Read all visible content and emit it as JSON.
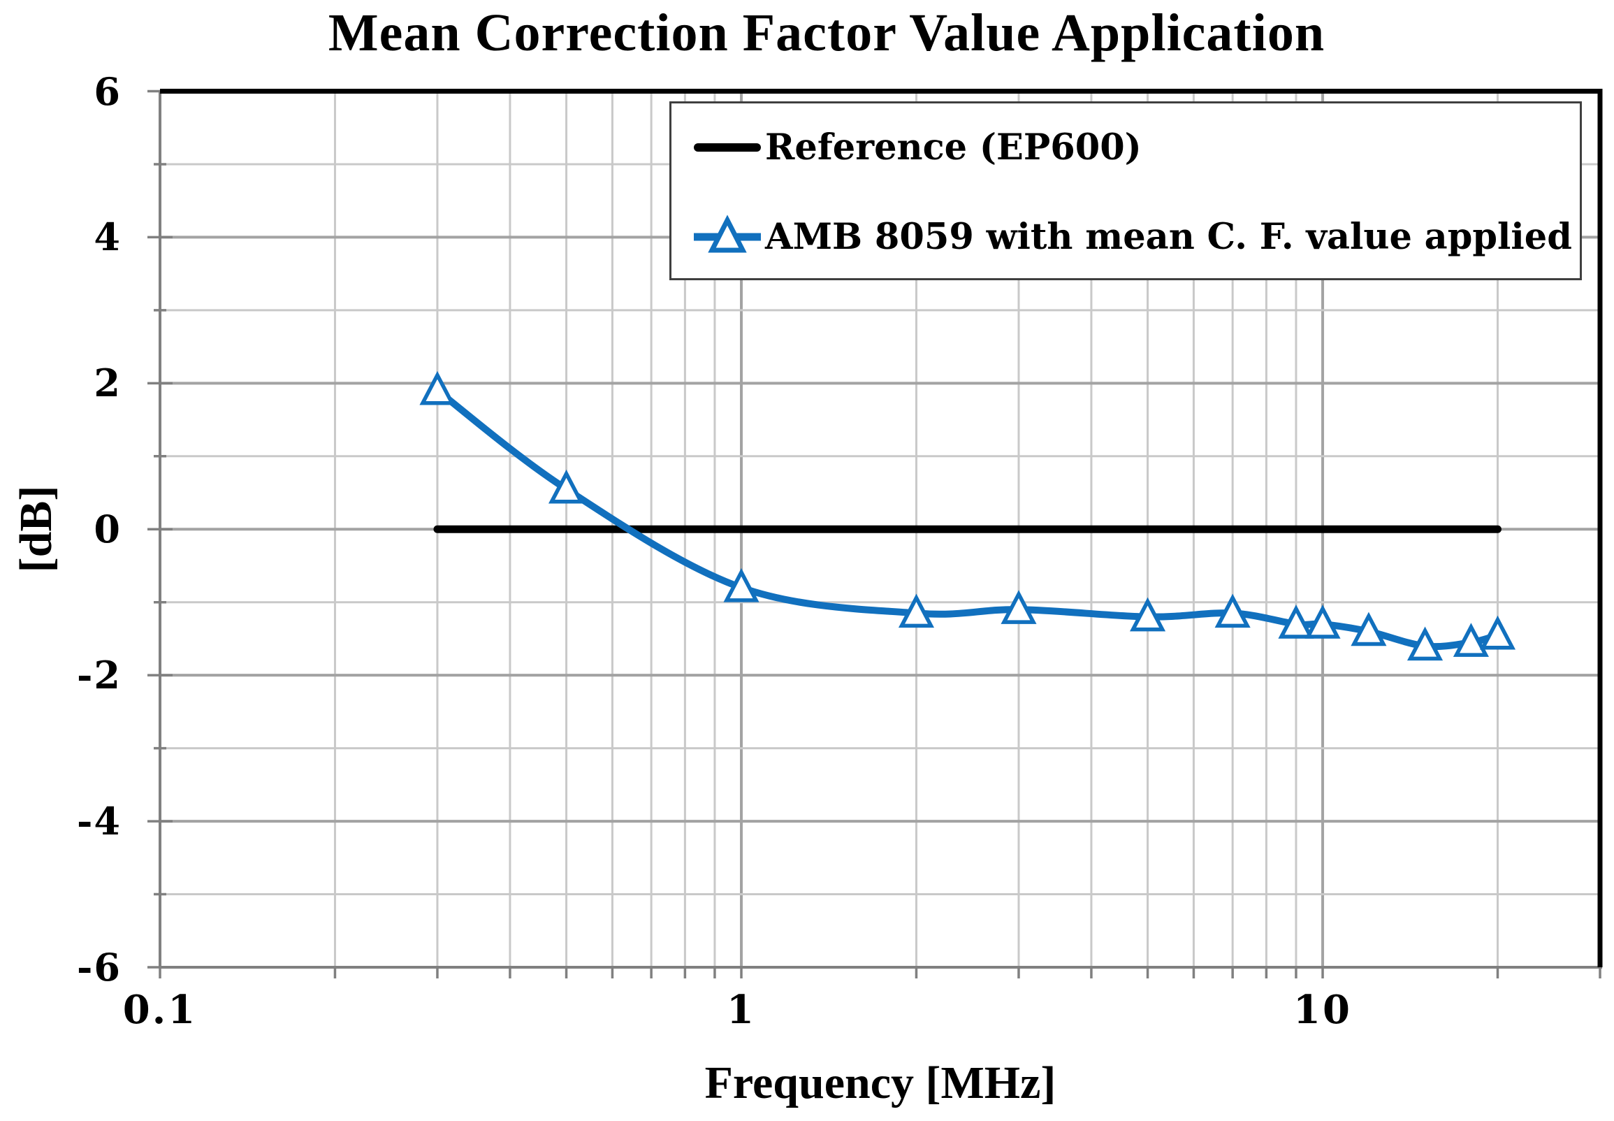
{
  "title": "Mean Correction Factor Value Application",
  "axes": {
    "x_title": "Frequency [MHz]",
    "y_title": "[dB]"
  },
  "legend": {
    "position": "top-right-inside",
    "items": [
      {
        "label": "Reference (EP600)",
        "series": "reference"
      },
      {
        "label": "AMB 8059 with mean C. F. value applied",
        "series": "amb8059"
      }
    ]
  },
  "colors": {
    "series_blue": "#1170BE",
    "series_black": "#000000",
    "grid_major": "#A3A3A3",
    "grid_minor": "#C9C9C9",
    "axis": "#808080",
    "plot_border": "#000000",
    "legend_border": "#3F3F3F",
    "background": "#FFFFFF",
    "text": "#000000"
  },
  "chart_data": {
    "type": "line",
    "title": "Mean Correction Factor Value Application",
    "xlabel": "Frequency [MHz]",
    "ylabel": "[dB]",
    "x_scale": "log",
    "xlim": [
      0.1,
      30
    ],
    "ylim": [
      -6,
      6
    ],
    "grid": true,
    "legend_position": "top-right-inside",
    "x_ticks": [
      {
        "value": 0.1,
        "label": "0.1"
      },
      {
        "value": 1,
        "label": "1"
      },
      {
        "value": 10,
        "label": "10"
      }
    ],
    "y_ticks": [
      {
        "value": 6,
        "label": "6"
      },
      {
        "value": 4,
        "label": "4"
      },
      {
        "value": 2,
        "label": "2"
      },
      {
        "value": 0,
        "label": "0"
      },
      {
        "value": -2,
        "label": "-2"
      },
      {
        "value": -4,
        "label": "-4"
      },
      {
        "value": -6,
        "label": "-6"
      }
    ],
    "series": [
      {
        "name": "Reference (EP600)",
        "color": "#000000",
        "marker": "none",
        "smooth": false,
        "line_width": 11,
        "points": [
          [
            0.3,
            0
          ],
          [
            20,
            0
          ]
        ]
      },
      {
        "name": "AMB 8059 with mean C. F. value applied",
        "color": "#1170BE",
        "marker": "triangle-open",
        "smooth": true,
        "line_width": 10,
        "points": [
          [
            0.3,
            1.9
          ],
          [
            0.5,
            0.55
          ],
          [
            1,
            -0.8
          ],
          [
            2,
            -1.15
          ],
          [
            3,
            -1.1
          ],
          [
            5,
            -1.2
          ],
          [
            7,
            -1.15
          ],
          [
            9,
            -1.3
          ],
          [
            10,
            -1.3
          ],
          [
            12,
            -1.4
          ],
          [
            15,
            -1.6
          ],
          [
            18,
            -1.55
          ],
          [
            20,
            -1.45
          ]
        ]
      }
    ]
  }
}
